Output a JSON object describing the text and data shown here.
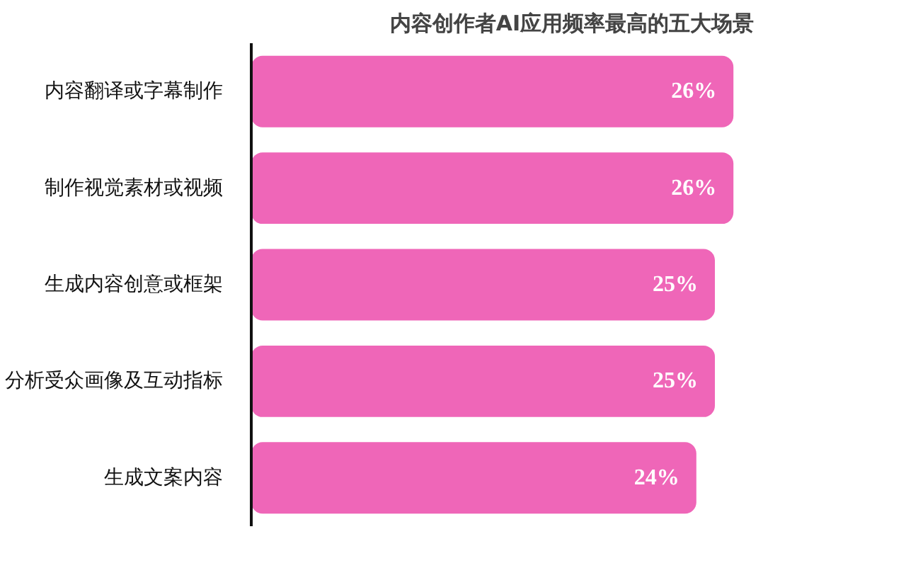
{
  "chart_data": {
    "type": "bar",
    "orientation": "horizontal",
    "title": "内容创作者AI应用频率最高的五大场景",
    "categories": [
      "内容翻译或字幕制作",
      "制作视觉素材或视频",
      "生成内容创意或框架",
      "分析受众画像及互动指标",
      "生成文案内容"
    ],
    "values": [
      26,
      26,
      25,
      25,
      24
    ],
    "value_labels": [
      "26%",
      "26%",
      "25%",
      "25%",
      "24%"
    ],
    "color": "#ef66b8",
    "grid": false,
    "tick_labels": "y"
  }
}
